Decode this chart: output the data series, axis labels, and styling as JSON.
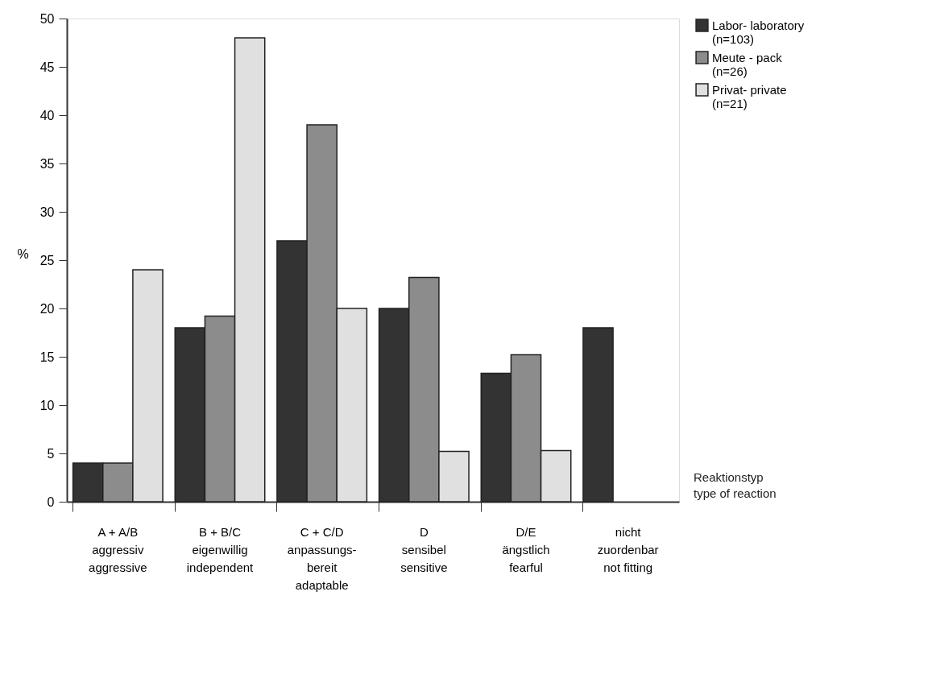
{
  "chart_data": {
    "type": "bar",
    "categories": [
      "A + A/B\naggressiv\n\naggressive",
      "B + B/C\neigenwillig\n\nindependent",
      "C + C/D\nanpassungs-\nbereit\nadaptable",
      "D\nsensibel\n\nsensitive",
      "D/E\nängstlich\n\nfearful",
      "nicht\nzuordenbar\n\nnot fitting"
    ],
    "series": [
      {
        "name": "Labor- laboratory\n(n=103)",
        "color": "#333333",
        "values": [
          4,
          18,
          27,
          20,
          13.3,
          18
        ]
      },
      {
        "name": "Meute - pack\n(n=26)",
        "color": "#8c8c8c",
        "values": [
          4,
          19.2,
          39,
          23.2,
          15.2,
          null
        ]
      },
      {
        "name": "Privat- private\n(n=21)",
        "color": "#e0e0e0",
        "values": [
          24,
          48,
          20,
          5.2,
          5.3,
          null
        ]
      }
    ],
    "ylabel": "%",
    "xlabel": "Reaktionstyp\n\ntype of reaction",
    "ylim": [
      0,
      50
    ],
    "yticks": [
      0,
      5,
      10,
      15,
      20,
      25,
      30,
      35,
      40,
      45,
      50
    ],
    "grid": false,
    "legend": "right"
  }
}
